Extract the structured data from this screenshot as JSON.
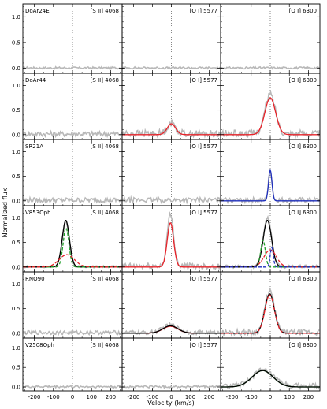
{
  "figure": {
    "ylabel": "Normalized flux",
    "xlabel": "Velocity (km/s)",
    "colors": {
      "observed": "#b8b8b8",
      "total_fit": "#000000",
      "red_fit": "#e8232a",
      "green_fit": "#22a02a",
      "blue_fit": "#1f2fbd",
      "zero_line": "#555555"
    }
  },
  "chart_data": {
    "type": "line",
    "grid": "multi-panel 6 rows x 3 columns, shared axes",
    "xlim": [
      -260,
      260
    ],
    "ylim": [
      -0.1,
      1.25
    ],
    "x_ticks": [
      -200,
      -100,
      0,
      100,
      200
    ],
    "x_tick_labels": [
      "-200",
      "-100",
      "0",
      "100",
      "200"
    ],
    "y_ticks": [
      0.0,
      0.5,
      1.0
    ],
    "y_tick_labels": [
      "0.0",
      "0.5",
      "1.0"
    ],
    "columns": [
      "[S II] 4068",
      "[O I] 5577",
      "[O I] 6300"
    ],
    "rows": [
      {
        "star": "DoAr24E",
        "panels": [
          {
            "line": "[S II] 4068",
            "noise": 0.02,
            "bump": null,
            "fits": []
          },
          {
            "line": "[O I] 5577",
            "noise": 0.02,
            "bump": null,
            "fits": []
          },
          {
            "line": "[O I] 6300",
            "noise": 0.02,
            "bump": null,
            "fits": []
          }
        ]
      },
      {
        "star": "DoAr44",
        "panels": [
          {
            "line": "[S II] 4068",
            "noise": 0.05,
            "bump": null,
            "fits": []
          },
          {
            "line": "[O I] 5577",
            "noise": 0.07,
            "bump": {
              "amp": 0.22,
              "center": 0,
              "sigma": 22
            },
            "fits": [
              {
                "color": "red",
                "dashed": false,
                "amp": 0.22,
                "center": 0,
                "sigma": 22
              }
            ]
          },
          {
            "line": "[O I] 6300",
            "noise": 0.07,
            "bump": {
              "amp": 0.8,
              "center": 0,
              "sigma": 27
            },
            "fits": [
              {
                "color": "red",
                "dashed": false,
                "amp": 0.75,
                "center": 0,
                "sigma": 28
              }
            ]
          }
        ]
      },
      {
        "star": "SR21A",
        "panels": [
          {
            "line": "[S II] 4068",
            "noise": 0.05,
            "bump": null,
            "fits": []
          },
          {
            "line": "[O I] 5577",
            "noise": 0.05,
            "bump": null,
            "fits": []
          },
          {
            "line": "[O I] 6300",
            "noise": 0.05,
            "bump": {
              "amp": 0.62,
              "center": 0,
              "sigma": 9
            },
            "fits": [
              {
                "color": "blue",
                "dashed": false,
                "amp": 0.62,
                "center": 0,
                "sigma": 9
              }
            ]
          }
        ]
      },
      {
        "star": "V853Oph",
        "panels": [
          {
            "line": "[S II] 4068",
            "noise": 0.02,
            "bump": {
              "amp": 0.92,
              "center": -35,
              "sigma": 18
            },
            "fits": [
              {
                "color": "black",
                "dashed": false,
                "amp": 0.95,
                "center": -35,
                "sigma": 19
              },
              {
                "color": "green",
                "dashed": true,
                "amp": 0.8,
                "center": -34,
                "sigma": 15
              },
              {
                "color": "red",
                "dashed": true,
                "amp": 0.25,
                "center": -30,
                "sigma": 40
              }
            ]
          },
          {
            "line": "[O I] 5577",
            "noise": 0.06,
            "bump": {
              "amp": 1.05,
              "center": -5,
              "sigma": 17
            },
            "fits": [
              {
                "color": "red",
                "dashed": false,
                "amp": 0.9,
                "center": -5,
                "sigma": 17
              }
            ]
          },
          {
            "line": "[O I] 6300",
            "noise": 0.03,
            "bump": {
              "amp": 1.0,
              "center": -15,
              "sigma": 22
            },
            "fits": [
              {
                "color": "black",
                "dashed": false,
                "amp": 0.95,
                "center": -15,
                "sigma": 22
              },
              {
                "color": "green",
                "dashed": true,
                "amp": 0.55,
                "center": -38,
                "sigma": 12
              },
              {
                "color": "red",
                "dashed": true,
                "amp": 0.35,
                "center": 0,
                "sigma": 32
              },
              {
                "color": "blue",
                "dashed": true,
                "amp": 0.4,
                "center": 8,
                "sigma": 8
              }
            ]
          }
        ]
      },
      {
        "star": "RNO90",
        "panels": [
          {
            "line": "[S II] 4068",
            "noise": 0.04,
            "bump": null,
            "fits": []
          },
          {
            "line": "[O I] 5577",
            "noise": 0.04,
            "bump": {
              "amp": 0.15,
              "center": -5,
              "sigma": 40
            },
            "fits": [
              {
                "color": "red",
                "dashed": false,
                "amp": 0.14,
                "center": -5,
                "sigma": 40
              },
              {
                "color": "black",
                "dashed": false,
                "amp": 0.15,
                "center": -5,
                "sigma": 40
              }
            ]
          },
          {
            "line": "[O I] 6300",
            "noise": 0.06,
            "bump": {
              "amp": 0.85,
              "center": -3,
              "sigma": 24
            },
            "fits": [
              {
                "color": "black",
                "dashed": false,
                "amp": 0.8,
                "center": -3,
                "sigma": 25
              },
              {
                "color": "red",
                "dashed": true,
                "amp": 0.78,
                "center": -3,
                "sigma": 25
              }
            ]
          }
        ]
      },
      {
        "star": "V2508Oph",
        "panels": [
          {
            "line": "[S II] 4068",
            "noise": 0.03,
            "bump": null,
            "fits": []
          },
          {
            "line": "[O I] 5577",
            "noise": 0.03,
            "bump": null,
            "fits": []
          },
          {
            "line": "[O I] 6300",
            "noise": 0.07,
            "bump": {
              "amp": 0.4,
              "center": -40,
              "sigma": 55
            },
            "fits": [
              {
                "color": "green",
                "dashed": false,
                "amp": 0.42,
                "center": -40,
                "sigma": 55
              },
              {
                "color": "black",
                "dashed": false,
                "amp": 0.42,
                "center": -40,
                "sigma": 55
              }
            ]
          }
        ]
      }
    ]
  }
}
